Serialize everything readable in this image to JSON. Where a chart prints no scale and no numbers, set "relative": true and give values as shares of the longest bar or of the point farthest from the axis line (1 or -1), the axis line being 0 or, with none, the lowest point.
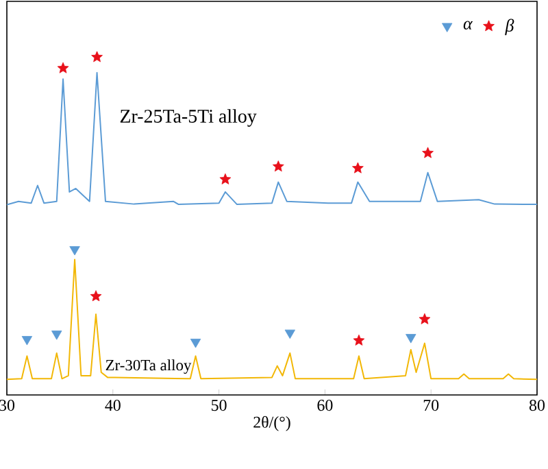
{
  "chart_data": {
    "type": "line",
    "relative": true,
    "xlabel": "2θ/(°)",
    "xlim": [
      30,
      80
    ],
    "xticks": [
      30,
      40,
      50,
      60,
      70,
      80
    ],
    "legend": "top right",
    "grid": false,
    "series": [
      {
        "name": "Zr-25Ta-5Ti alloy",
        "color": "#5b9bd5",
        "x": [
          30,
          31.1,
          32.3,
          32.9,
          33.5,
          34.7,
          35.3,
          35.9,
          36.5,
          37.8,
          38.5,
          39.3,
          42,
          45.7,
          46.2,
          50,
          50.6,
          51.7,
          55,
          55.6,
          56.4,
          60.3,
          62.5,
          63.1,
          64.2,
          65.9,
          69.0,
          69.7,
          70.6,
          74.5,
          76,
          80
        ],
        "values": [
          0.563,
          0.573,
          0.568,
          0.62,
          0.568,
          0.573,
          0.935,
          0.601,
          0.611,
          0.573,
          0.954,
          0.573,
          0.565,
          0.573,
          0.564,
          0.568,
          0.601,
          0.564,
          0.568,
          0.63,
          0.573,
          0.568,
          0.568,
          0.63,
          0.573,
          0.573,
          0.573,
          0.658,
          0.573,
          0.578,
          0.565,
          0.564
        ]
      },
      {
        "name": "Zr-30Ta alloy",
        "color": "#f2b705",
        "x": [
          30,
          31.4,
          31.9,
          32.4,
          34.2,
          34.7,
          35.2,
          35.8,
          36.4,
          37.0,
          37.9,
          38.4,
          38.9,
          39.5,
          40.2,
          47.3,
          47.8,
          48.3,
          55.0,
          55.5,
          56.0,
          56.7,
          57.2,
          62.7,
          63.2,
          63.7,
          67.6,
          68.1,
          68.6,
          69.4,
          70.0,
          72.6,
          73.1,
          73.6,
          76.8,
          77.3,
          77.8,
          80
        ],
        "values": [
          0.046,
          0.048,
          0.115,
          0.048,
          0.048,
          0.124,
          0.048,
          0.057,
          0.401,
          0.057,
          0.057,
          0.239,
          0.067,
          0.052,
          0.052,
          0.048,
          0.115,
          0.048,
          0.052,
          0.086,
          0.057,
          0.124,
          0.048,
          0.048,
          0.115,
          0.048,
          0.057,
          0.134,
          0.067,
          0.153,
          0.048,
          0.048,
          0.062,
          0.048,
          0.048,
          0.062,
          0.048,
          0.046
        ]
      },
      {
        "name": "α",
        "type": "scatter",
        "marker": "triangle",
        "color": "#5b9bd5",
        "x": [
          31.9,
          34.7,
          36.4,
          47.8,
          56.7,
          68.1
        ],
        "values": [
          0.165,
          0.181,
          0.431,
          0.157,
          0.184,
          0.171
        ]
      },
      {
        "name": "β",
        "type": "scatter",
        "marker": "star",
        "color": "#e8101a",
        "x": [
          35.3,
          38.5,
          50.6,
          55.6,
          63.1,
          69.7,
          38.4,
          63.2,
          69.4
        ],
        "values": [
          0.967,
          1,
          0.638,
          0.676,
          0.671,
          0.716,
          0.292,
          0.161,
          0.224
        ]
      }
    ]
  }
}
